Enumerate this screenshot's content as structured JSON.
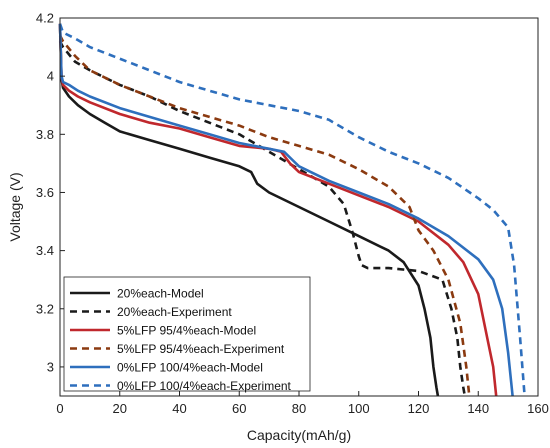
{
  "chart_data": {
    "type": "line",
    "title": "",
    "xlabel": "Capacity(mAh/g)",
    "ylabel": "Voltage (V)",
    "xlim": [
      0,
      160
    ],
    "ylim": [
      2.9,
      4.2
    ],
    "xticks": [
      "0",
      "20",
      "40",
      "60",
      "80",
      "100",
      "120",
      "140",
      "160"
    ],
    "yticks": [
      "3",
      "3.2",
      "3.4",
      "3.6",
      "3.8",
      "4",
      "4.2"
    ],
    "grid": false,
    "legend_position": "bottom-left",
    "series": [
      {
        "name": "20%each-Model",
        "color": "#1a1a1a",
        "dash": "solid",
        "x": [
          0,
          0.5,
          1,
          3,
          6,
          10,
          15,
          20,
          30,
          40,
          50,
          60,
          64,
          66,
          70,
          80,
          90,
          100,
          110,
          115,
          120,
          122,
          124,
          125,
          126,
          126.5
        ],
        "y": [
          4.18,
          3.99,
          3.96,
          3.93,
          3.9,
          3.87,
          3.84,
          3.81,
          3.78,
          3.75,
          3.72,
          3.69,
          3.67,
          3.63,
          3.6,
          3.55,
          3.5,
          3.45,
          3.4,
          3.36,
          3.28,
          3.2,
          3.1,
          3.0,
          2.93,
          2.9
        ]
      },
      {
        "name": "20%each-Experiment",
        "color": "#1a1a1a",
        "dash": "dashed",
        "x": [
          0,
          1,
          5,
          10,
          20,
          30,
          40,
          50,
          60,
          70,
          80,
          90,
          95,
          98,
          100,
          101,
          103,
          110,
          120,
          128,
          131,
          133,
          134,
          135,
          135.5
        ],
        "y": [
          4.12,
          4.1,
          4.05,
          4.02,
          3.97,
          3.93,
          3.88,
          3.84,
          3.8,
          3.74,
          3.68,
          3.62,
          3.56,
          3.46,
          3.38,
          3.35,
          3.34,
          3.34,
          3.33,
          3.3,
          3.2,
          3.1,
          3.0,
          2.93,
          2.9
        ]
      },
      {
        "name": "5%LFP 95/4%each-Model",
        "color": "#c0282d",
        "dash": "solid",
        "x": [
          0,
          0.5,
          1,
          3,
          6,
          10,
          20,
          30,
          40,
          50,
          60,
          70,
          74,
          77,
          80,
          90,
          100,
          110,
          120,
          130,
          135,
          140,
          143,
          145,
          146
        ],
        "y": [
          4.18,
          4.0,
          3.97,
          3.95,
          3.93,
          3.91,
          3.87,
          3.84,
          3.82,
          3.79,
          3.76,
          3.75,
          3.74,
          3.7,
          3.67,
          3.63,
          3.59,
          3.55,
          3.5,
          3.42,
          3.36,
          3.25,
          3.1,
          3.0,
          2.9
        ]
      },
      {
        "name": "5%LFP 95/4%each-Experiment",
        "color": "#8b3a10",
        "dash": "dashed",
        "x": [
          0,
          1,
          5,
          10,
          20,
          30,
          40,
          50,
          60,
          70,
          80,
          90,
          100,
          110,
          117,
          120,
          125,
          130,
          134,
          136,
          137
        ],
        "y": [
          4.14,
          4.12,
          4.07,
          4.02,
          3.97,
          3.93,
          3.89,
          3.86,
          3.83,
          3.79,
          3.76,
          3.73,
          3.68,
          3.62,
          3.55,
          3.47,
          3.4,
          3.3,
          3.15,
          3.0,
          2.9
        ]
      },
      {
        "name": "0%LFP 100/4%each-Model",
        "color": "#2e6fbd",
        "dash": "solid",
        "x": [
          0,
          0.5,
          1,
          3,
          6,
          10,
          20,
          30,
          40,
          50,
          60,
          70,
          75,
          78,
          80,
          90,
          100,
          110,
          120,
          130,
          140,
          145,
          148,
          150,
          151.5
        ],
        "y": [
          4.18,
          4.0,
          3.98,
          3.97,
          3.95,
          3.93,
          3.89,
          3.86,
          3.83,
          3.8,
          3.77,
          3.75,
          3.74,
          3.71,
          3.69,
          3.64,
          3.6,
          3.56,
          3.51,
          3.45,
          3.37,
          3.3,
          3.2,
          3.05,
          2.9
        ]
      },
      {
        "name": "0%LFP 100/4%each-Experiment",
        "color": "#2e6fbd",
        "dash": "dashed",
        "x": [
          0,
          1,
          5,
          10,
          20,
          30,
          40,
          50,
          60,
          70,
          80,
          90,
          100,
          110,
          120,
          130,
          140,
          145,
          150,
          152,
          154,
          155.5
        ],
        "y": [
          4.18,
          4.15,
          4.13,
          4.1,
          4.06,
          4.02,
          3.98,
          3.95,
          3.92,
          3.9,
          3.88,
          3.85,
          3.79,
          3.74,
          3.7,
          3.65,
          3.58,
          3.54,
          3.48,
          3.35,
          3.1,
          2.9
        ]
      }
    ]
  }
}
